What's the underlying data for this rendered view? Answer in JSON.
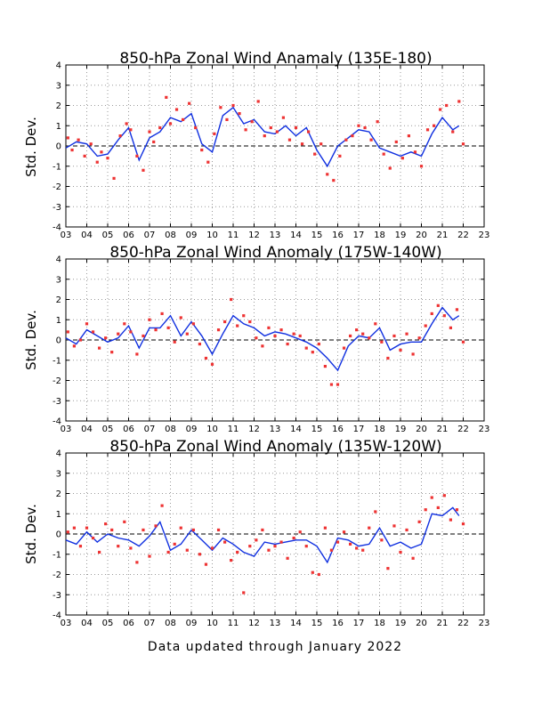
{
  "footer": "Data updated through January 2022",
  "colors": {
    "line": "#1030e0",
    "points": "#ee3333",
    "grid": "#9a9a9a",
    "zero": "#000000"
  },
  "chart_data": [
    {
      "type": "line",
      "title": "850-hPa Zonal Wind Anamaly (135E-180)",
      "ylabel": "Std. Dev.",
      "xlabel": "",
      "xlim": [
        3,
        23
      ],
      "ylim": [
        -4,
        4
      ],
      "x_ticks": [
        "03",
        "04",
        "05",
        "06",
        "07",
        "08",
        "09",
        "10",
        "11",
        "12",
        "13",
        "14",
        "15",
        "16",
        "17",
        "18",
        "19",
        "20",
        "21",
        "22",
        "23"
      ],
      "y_ticks": [
        "-4",
        "-3",
        "-2",
        "-1",
        "0",
        "1",
        "2",
        "3",
        "4"
      ],
      "grid": true,
      "series": [
        {
          "style": "line",
          "x": [
            3.0,
            3.5,
            4.0,
            4.5,
            5.0,
            5.5,
            6.0,
            6.5,
            7.0,
            7.5,
            8.0,
            8.5,
            9.0,
            9.5,
            10.0,
            10.5,
            11.0,
            11.5,
            12.0,
            12.5,
            13.0,
            13.5,
            14.0,
            14.5,
            15.0,
            15.5,
            16.0,
            16.5,
            17.0,
            17.5,
            18.0,
            18.5,
            19.0,
            19.5,
            20.0,
            20.5,
            21.0,
            21.5,
            21.8
          ],
          "y": [
            -0.1,
            0.2,
            0.1,
            -0.5,
            -0.4,
            0.3,
            0.9,
            -0.7,
            0.4,
            0.7,
            1.4,
            1.2,
            1.6,
            0.1,
            -0.3,
            1.5,
            1.9,
            1.1,
            1.3,
            0.7,
            0.6,
            1.0,
            0.5,
            0.9,
            -0.2,
            -1.0,
            0.0,
            0.4,
            0.8,
            0.7,
            -0.1,
            -0.3,
            -0.5,
            -0.3,
            -0.5,
            0.6,
            1.4,
            0.8,
            1.0
          ]
        },
        {
          "style": "points",
          "x": [
            3.1,
            3.3,
            3.6,
            3.9,
            4.2,
            4.5,
            4.7,
            5.0,
            5.3,
            5.6,
            5.9,
            6.1,
            6.4,
            6.7,
            7.0,
            7.2,
            7.5,
            7.8,
            8.0,
            8.3,
            8.6,
            8.9,
            9.2,
            9.5,
            9.8,
            10.1,
            10.4,
            10.7,
            11.0,
            11.3,
            11.6,
            11.9,
            12.2,
            12.5,
            12.8,
            13.1,
            13.4,
            13.7,
            14.0,
            14.3,
            14.6,
            14.9,
            15.2,
            15.5,
            15.8,
            16.1,
            16.4,
            16.7,
            17.0,
            17.3,
            17.6,
            17.9,
            18.2,
            18.5,
            18.8,
            19.1,
            19.4,
            19.7,
            20.0,
            20.3,
            20.6,
            20.9,
            21.2,
            21.5,
            21.8,
            22.0
          ],
          "y": [
            0.4,
            -0.2,
            0.3,
            -0.5,
            0.1,
            -0.8,
            -0.3,
            -0.6,
            -1.6,
            0.5,
            1.1,
            0.8,
            -0.5,
            -1.2,
            0.7,
            0.2,
            0.9,
            2.4,
            1.1,
            1.8,
            1.3,
            2.1,
            0.9,
            -0.2,
            -0.8,
            0.6,
            1.9,
            1.3,
            2.0,
            1.6,
            0.8,
            1.2,
            2.2,
            0.5,
            0.9,
            0.7,
            1.4,
            0.3,
            0.9,
            0.1,
            0.7,
            -0.4,
            0.1,
            -1.4,
            -1.7,
            -0.5,
            0.3,
            0.5,
            1.0,
            0.9,
            0.3,
            1.2,
            -0.4,
            -1.1,
            0.2,
            -0.6,
            0.5,
            -0.3,
            -1.0,
            0.8,
            1.0,
            1.8,
            2.0,
            0.7,
            2.2,
            0.1
          ]
        }
      ]
    },
    {
      "type": "line",
      "title": "850-hPa Zonal Wind Anomaly (175W-140W)",
      "ylabel": "Std. Dev.",
      "xlabel": "",
      "xlim": [
        3,
        23
      ],
      "ylim": [
        -4,
        4
      ],
      "x_ticks": [
        "03",
        "04",
        "05",
        "06",
        "07",
        "08",
        "09",
        "10",
        "11",
        "12",
        "13",
        "14",
        "15",
        "16",
        "17",
        "18",
        "19",
        "20",
        "21",
        "22",
        "23"
      ],
      "y_ticks": [
        "-4",
        "-3",
        "-2",
        "-1",
        "0",
        "1",
        "2",
        "3",
        "4"
      ],
      "grid": true,
      "series": [
        {
          "style": "line",
          "x": [
            3.0,
            3.5,
            4.0,
            4.5,
            5.0,
            5.5,
            6.0,
            6.5,
            7.0,
            7.5,
            8.0,
            8.5,
            9.0,
            9.5,
            10.0,
            10.5,
            11.0,
            11.5,
            12.0,
            12.5,
            13.0,
            13.5,
            14.0,
            14.5,
            15.0,
            15.5,
            16.0,
            16.5,
            17.0,
            17.5,
            18.0,
            18.5,
            19.0,
            19.5,
            20.0,
            20.5,
            21.0,
            21.5,
            21.8
          ],
          "y": [
            0.1,
            -0.2,
            0.5,
            0.2,
            -0.1,
            0.1,
            0.7,
            -0.4,
            0.6,
            0.6,
            1.2,
            0.2,
            0.9,
            0.2,
            -0.7,
            0.3,
            1.2,
            0.8,
            0.6,
            0.2,
            0.4,
            0.3,
            0.1,
            -0.1,
            -0.4,
            -0.9,
            -1.5,
            -0.3,
            0.2,
            0.1,
            0.6,
            -0.5,
            -0.2,
            -0.1,
            -0.1,
            0.8,
            1.6,
            1.0,
            1.2
          ]
        },
        {
          "style": "points",
          "x": [
            3.1,
            3.4,
            3.7,
            4.0,
            4.3,
            4.6,
            4.9,
            5.2,
            5.5,
            5.8,
            6.1,
            6.4,
            6.7,
            7.0,
            7.3,
            7.6,
            7.9,
            8.2,
            8.5,
            8.8,
            9.1,
            9.4,
            9.7,
            10.0,
            10.3,
            10.6,
            10.9,
            11.2,
            11.5,
            11.8,
            12.1,
            12.4,
            12.7,
            13.0,
            13.3,
            13.6,
            13.9,
            14.2,
            14.5,
            14.8,
            15.1,
            15.4,
            15.7,
            16.0,
            16.3,
            16.6,
            16.9,
            17.2,
            17.5,
            17.8,
            18.1,
            18.4,
            18.7,
            19.0,
            19.3,
            19.6,
            19.9,
            20.2,
            20.5,
            20.8,
            21.1,
            21.4,
            21.7,
            22.0
          ],
          "y": [
            0.4,
            -0.3,
            0.0,
            0.8,
            0.4,
            -0.4,
            0.1,
            -0.6,
            0.3,
            0.8,
            0.4,
            -0.7,
            0.2,
            1.0,
            0.5,
            1.3,
            0.6,
            -0.1,
            1.1,
            0.3,
            0.8,
            -0.2,
            -0.9,
            -1.2,
            0.5,
            0.9,
            2.0,
            0.7,
            1.2,
            0.9,
            0.1,
            -0.3,
            0.6,
            0.2,
            0.5,
            -0.2,
            0.3,
            0.2,
            -0.4,
            -0.6,
            -0.2,
            -1.3,
            -2.2,
            -2.2,
            -0.4,
            0.2,
            0.5,
            0.3,
            0.1,
            0.8,
            -0.1,
            -0.9,
            0.2,
            -0.5,
            0.3,
            -0.7,
            0.1,
            0.7,
            1.3,
            1.7,
            1.2,
            0.6,
            1.5,
            -0.1
          ]
        }
      ]
    },
    {
      "type": "line",
      "title": "850-hPa Zonal Wind Anomaly (135W-120W)",
      "ylabel": "Std. Dev.",
      "xlabel": "",
      "xlim": [
        3,
        23
      ],
      "ylim": [
        -4,
        4
      ],
      "x_ticks": [
        "03",
        "04",
        "05",
        "06",
        "07",
        "08",
        "09",
        "10",
        "11",
        "12",
        "13",
        "14",
        "15",
        "16",
        "17",
        "18",
        "19",
        "20",
        "21",
        "22",
        "23"
      ],
      "y_ticks": [
        "-4",
        "-3",
        "-2",
        "-1",
        "0",
        "1",
        "2",
        "3",
        "4"
      ],
      "grid": true,
      "series": [
        {
          "style": "line",
          "x": [
            3.0,
            3.5,
            4.0,
            4.5,
            5.0,
            5.5,
            6.0,
            6.5,
            7.0,
            7.5,
            8.0,
            8.5,
            9.0,
            9.5,
            10.0,
            10.5,
            11.0,
            11.5,
            12.0,
            12.5,
            13.0,
            13.5,
            14.0,
            14.5,
            15.0,
            15.5,
            16.0,
            16.5,
            17.0,
            17.5,
            18.0,
            18.5,
            19.0,
            19.5,
            20.0,
            20.5,
            21.0,
            21.5,
            21.8
          ],
          "y": [
            -0.3,
            -0.5,
            0.1,
            -0.4,
            0.0,
            -0.2,
            -0.3,
            -0.6,
            -0.1,
            0.6,
            -0.8,
            -0.5,
            0.2,
            -0.3,
            -0.8,
            -0.2,
            -0.5,
            -0.9,
            -1.1,
            -0.4,
            -0.5,
            -0.4,
            -0.3,
            -0.3,
            -0.6,
            -1.4,
            -0.2,
            -0.3,
            -0.6,
            -0.5,
            0.3,
            -0.6,
            -0.4,
            -0.7,
            -0.5,
            1.0,
            0.9,
            1.3,
            0.9
          ]
        },
        {
          "style": "points",
          "x": [
            3.1,
            3.4,
            3.7,
            4.0,
            4.3,
            4.6,
            4.9,
            5.2,
            5.5,
            5.8,
            6.1,
            6.4,
            6.7,
            7.0,
            7.3,
            7.6,
            7.9,
            8.2,
            8.5,
            8.8,
            9.1,
            9.4,
            9.7,
            10.0,
            10.3,
            10.6,
            10.9,
            11.2,
            11.5,
            11.8,
            12.1,
            12.4,
            12.7,
            13.0,
            13.3,
            13.6,
            13.9,
            14.2,
            14.5,
            14.8,
            15.1,
            15.4,
            15.7,
            16.0,
            16.3,
            16.6,
            16.9,
            17.2,
            17.5,
            17.8,
            18.1,
            18.4,
            18.7,
            19.0,
            19.3,
            19.6,
            19.9,
            20.2,
            20.5,
            20.8,
            21.1,
            21.4,
            21.7,
            22.0
          ],
          "y": [
            0.1,
            0.3,
            -0.6,
            0.3,
            -0.2,
            -0.9,
            0.5,
            0.2,
            -0.6,
            0.6,
            -0.7,
            -1.4,
            0.2,
            -1.1,
            0.4,
            1.4,
            -0.9,
            -0.5,
            0.3,
            -0.8,
            0.2,
            -1.0,
            -1.5,
            -0.7,
            0.2,
            -0.4,
            -1.3,
            -0.9,
            -2.9,
            -0.6,
            -0.3,
            0.2,
            -0.8,
            -0.6,
            -0.4,
            -1.2,
            -0.2,
            0.1,
            -0.6,
            -1.9,
            -2.0,
            0.3,
            -0.8,
            -0.4,
            0.1,
            -0.5,
            -0.7,
            -0.8,
            0.3,
            1.1,
            -0.3,
            -1.7,
            0.4,
            -0.9,
            0.2,
            -1.2,
            0.6,
            1.2,
            1.8,
            1.3,
            1.9,
            0.7,
            1.2,
            0.5
          ]
        }
      ]
    }
  ]
}
